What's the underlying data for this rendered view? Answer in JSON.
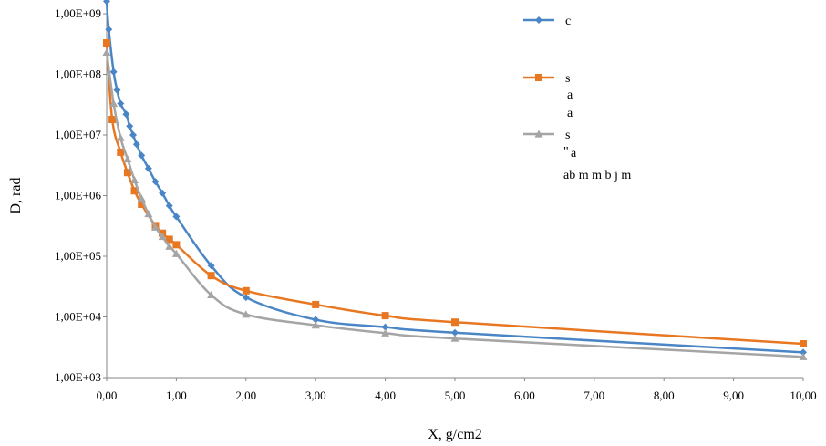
{
  "chart_data": {
    "type": "line",
    "xlabel": "X, g/cm2",
    "ylabel": "D, rad",
    "x_scale": "linear",
    "y_scale": "log",
    "xlim": [
      0,
      10
    ],
    "ylim": [
      1000,
      1000000000
    ],
    "x_ticks": [
      {
        "value": 0,
        "label": "0,00"
      },
      {
        "value": 1,
        "label": "1,00"
      },
      {
        "value": 2,
        "label": "2,00"
      },
      {
        "value": 3,
        "label": "3,00"
      },
      {
        "value": 4,
        "label": "4,00"
      },
      {
        "value": 5,
        "label": "5,00"
      },
      {
        "value": 6,
        "label": "6,00"
      },
      {
        "value": 7,
        "label": "7,00"
      },
      {
        "value": 8,
        "label": "8,00"
      },
      {
        "value": 9,
        "label": "9,00"
      },
      {
        "value": 10,
        "label": "10,00"
      }
    ],
    "y_ticks": [
      {
        "value": 1000,
        "label": "1,00E+03"
      },
      {
        "value": 10000,
        "label": "1,00E+04"
      },
      {
        "value": 100000,
        "label": "1,00E+05"
      },
      {
        "value": 1000000,
        "label": "1,00E+06"
      },
      {
        "value": 10000000,
        "label": "1,00E+07"
      },
      {
        "value": 100000000,
        "label": "1,00E+08"
      },
      {
        "value": 1000000000,
        "label": "1,00E+09"
      }
    ],
    "grid": false,
    "legend_position": "top-right",
    "series": [
      {
        "legend_label": "c",
        "color": "#4a86c5",
        "marker": "diamond",
        "points": [
          [
            0.0,
            1600000000.0
          ],
          [
            0.03,
            550000000.0
          ],
          [
            0.1,
            110000000.0
          ],
          [
            0.15,
            55000000.0
          ],
          [
            0.2,
            33000000.0
          ],
          [
            0.28,
            22000000.0
          ],
          [
            0.33,
            14000000.0
          ],
          [
            0.38,
            10000000.0
          ],
          [
            0.43,
            7000000.0
          ],
          [
            0.5,
            4600000.0
          ],
          [
            0.6,
            2800000.0
          ],
          [
            0.7,
            1700000.0
          ],
          [
            0.8,
            1100000.0
          ],
          [
            0.9,
            680000.0
          ],
          [
            1.0,
            450000.0
          ],
          [
            1.5,
            70000.0
          ],
          [
            2.0,
            21000.0
          ],
          [
            3.0,
            9000.0
          ],
          [
            4.0,
            6800.0
          ],
          [
            5.0,
            5500.0
          ],
          [
            10.0,
            2600.0
          ]
        ]
      },
      {
        "legend_label": "s",
        "color": "#e87722",
        "marker": "square",
        "points": [
          [
            0.0,
            330000000.0
          ],
          [
            0.08,
            18000000.0
          ],
          [
            0.2,
            5200000.0
          ],
          [
            0.3,
            2400000.0
          ],
          [
            0.4,
            1200000.0
          ],
          [
            0.5,
            720000.0
          ],
          [
            0.7,
            320000.0
          ],
          [
            0.8,
            240000.0
          ],
          [
            0.9,
            190000.0
          ],
          [
            1.0,
            155000.0
          ],
          [
            1.5,
            48000.0
          ],
          [
            2.0,
            27000.0
          ],
          [
            3.0,
            16000.0
          ],
          [
            4.0,
            10500.0
          ],
          [
            5.0,
            8200.0
          ],
          [
            10.0,
            3600.0
          ]
        ]
      },
      {
        "legend_label": "s",
        "color": "#a5a5a5",
        "marker": "triangle",
        "points": [
          [
            0.0,
            230000000.0
          ],
          [
            0.1,
            33000000.0
          ],
          [
            0.2,
            9000000.0
          ],
          [
            0.3,
            4000000.0
          ],
          [
            0.4,
            1800000.0
          ],
          [
            0.5,
            900000.0
          ],
          [
            0.6,
            500000.0
          ],
          [
            0.7,
            300000.0
          ],
          [
            0.8,
            210000.0
          ],
          [
            0.9,
            145000.0
          ],
          [
            1.0,
            110000.0
          ],
          [
            1.5,
            23000.0
          ],
          [
            2.0,
            11000.0
          ],
          [
            3.0,
            7300.0
          ],
          [
            4.0,
            5400.0
          ],
          [
            5.0,
            4400.0
          ],
          [
            10.0,
            2200.0
          ]
        ]
      }
    ],
    "legend_overlay_text": [
      {
        "text": "a",
        "size": 14
      },
      {
        "text": "a",
        "size": 14
      },
      {
        "text": "\"",
        "size": 11
      },
      {
        "text": "a",
        "size": 14
      },
      {
        "text": "ab   m m   b   j   m",
        "size": 14
      }
    ]
  }
}
